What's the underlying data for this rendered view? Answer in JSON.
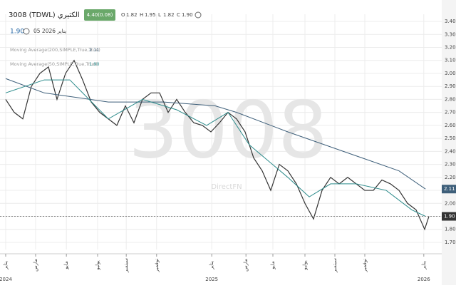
{
  "header": {
    "title": "3008 (TDWL) الكثيري",
    "change": "4.40(0.08)",
    "ohlc": [
      {
        "label": "O",
        "value": "1.82"
      },
      {
        "label": "H",
        "value": "1.95"
      },
      {
        "label": "L",
        "value": "1.82"
      },
      {
        "label": "C",
        "value": "1.90"
      }
    ],
    "last_price": "1.90",
    "date": "05 2026 يناير"
  },
  "watermark": "3008",
  "source": "DirectFN",
  "chart_data": {
    "type": "line",
    "xlim": [
      -1.33,
      102
    ],
    "ylim": [
      1.645,
      3.455
    ],
    "grid": true,
    "xticks": [
      {
        "value": 0,
        "label": "يناير",
        "year": "2024"
      },
      {
        "value": 7,
        "label": "مارس"
      },
      {
        "value": 14.2,
        "label": "مايو"
      },
      {
        "value": 21.5,
        "label": "يوليو"
      },
      {
        "value": 28.2,
        "label": "سبتمبر"
      },
      {
        "value": 35.3,
        "label": "نوفمبر"
      },
      {
        "value": 48.2,
        "label": "يناير",
        "year": "2025"
      },
      {
        "value": 56.2,
        "label": "مارس"
      },
      {
        "value": 62.5,
        "label": "مايو"
      },
      {
        "value": 70,
        "label": "يوليو"
      },
      {
        "value": 77,
        "label": "سبتمبر"
      },
      {
        "value": 84,
        "label": "نوفمبر"
      },
      {
        "value": 97.8,
        "label": "يناير",
        "year": "2026"
      }
    ],
    "yticks": [
      {
        "value": 1.7,
        "label": "1.70"
      },
      {
        "value": 1.8,
        "label": "1.80"
      },
      {
        "value": 1.9,
        "label": "1.90"
      },
      {
        "value": 2.0,
        "label": "2.00"
      },
      {
        "value": 2.1,
        "label": "2.10"
      },
      {
        "value": 2.2,
        "label": "2.20"
      },
      {
        "value": 2.3,
        "label": "2.30"
      },
      {
        "value": 2.4,
        "label": "2.40"
      },
      {
        "value": 2.5,
        "label": "2.50"
      },
      {
        "value": 2.6,
        "label": "2.60"
      },
      {
        "value": 2.7,
        "label": "2.70"
      },
      {
        "value": 2.8,
        "label": "2.80"
      },
      {
        "value": 2.9,
        "label": "2.90"
      },
      {
        "value": 3.0,
        "label": "3.00"
      },
      {
        "value": 3.1,
        "label": "3.10"
      },
      {
        "value": 3.2,
        "label": "3.20"
      },
      {
        "value": 3.3,
        "label": "3.30"
      },
      {
        "value": 3.4,
        "label": "3.40"
      }
    ],
    "series": [
      {
        "name": "3008 (TDWL)",
        "color": "#333333",
        "x": [
          0,
          2,
          4,
          6,
          8,
          10,
          12,
          14,
          16,
          18,
          20,
          22,
          24,
          26,
          28,
          30,
          32,
          34,
          36,
          38,
          40,
          42,
          44,
          46,
          48,
          50,
          52,
          54,
          56,
          58,
          60,
          62,
          64,
          66,
          68,
          70,
          72,
          74,
          76,
          78,
          80,
          82,
          84,
          86,
          88,
          90,
          92,
          94,
          96,
          98,
          99
        ],
        "values": [
          2.8,
          2.7,
          2.65,
          2.9,
          3.0,
          3.05,
          2.8,
          3.0,
          3.1,
          2.95,
          2.78,
          2.7,
          2.65,
          2.6,
          2.75,
          2.62,
          2.8,
          2.85,
          2.85,
          2.7,
          2.8,
          2.7,
          2.62,
          2.6,
          2.55,
          2.62,
          2.7,
          2.65,
          2.55,
          2.35,
          2.25,
          2.1,
          2.3,
          2.25,
          2.15,
          2.0,
          1.88,
          2.1,
          2.2,
          2.15,
          2.2,
          2.15,
          2.1,
          2.1,
          2.18,
          2.15,
          2.1,
          2.0,
          1.95,
          1.8,
          1.9
        ],
        "last_label": "1.90"
      },
      {
        "name": "Moving Average(200,SIMPLE,True,True)",
        "color": "#3e5f7a",
        "x": [
          0,
          9,
          24,
          37,
          49,
          54,
          66,
          79,
          92,
          98.2
        ],
        "values": [
          2.96,
          2.85,
          2.78,
          2.78,
          2.75,
          2.7,
          2.55,
          2.4,
          2.25,
          2.11
        ],
        "last_label": "2.11"
      },
      {
        "name": "Moving Average(50,SIMPLE,True,True)",
        "color": "#2a8a8a",
        "x": [
          0,
          9,
          15,
          24,
          32,
          40,
          47,
          52,
          57,
          66,
          71,
          76,
          82,
          89,
          95,
          98.2
        ],
        "values": [
          2.85,
          2.95,
          2.95,
          2.65,
          2.8,
          2.72,
          2.6,
          2.7,
          2.45,
          2.2,
          2.05,
          2.15,
          2.15,
          2.1,
          1.95,
          1.9
        ],
        "last_label": "1.90"
      }
    ]
  }
}
